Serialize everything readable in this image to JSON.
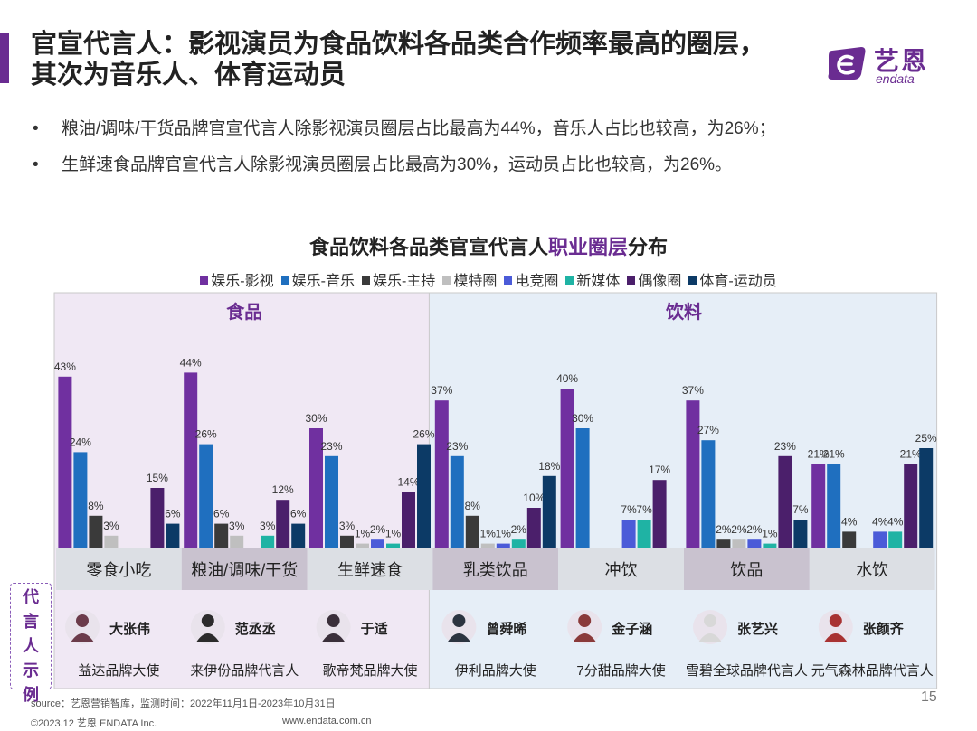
{
  "header": {
    "title_line1": "官宣代言人：影视演员为食品饮料各品类合作频率最高的圈层，",
    "title_line2": "其次为音乐人、体育运动员"
  },
  "logo": {
    "cn": "艺恩",
    "en": "endata"
  },
  "bullets": [
    "粮油/调味/干货品牌官宣代言人除影视演员圈层占比最高为44%，音乐人占比也较高，为26%；",
    "生鲜速食品牌官宣代言人除影视演员圈层占比最高为30%，运动员占比也较高，为26%。"
  ],
  "bullet_symbol": "•",
  "chart_data": {
    "type": "bar",
    "title_prefix": "食品饮料各品类官宣代言人",
    "title_highlight": "职业圈层",
    "title_suffix": "分布",
    "groups": [
      {
        "label": "食品",
        "categories": [
          "零食小吃",
          "粮油/调味/干货",
          "生鲜速食"
        ]
      },
      {
        "label": "饮料",
        "categories": [
          "乳类饮品",
          "冲饮",
          "饮品",
          "水饮"
        ]
      }
    ],
    "categories": [
      "零食小吃",
      "粮油/调味/干货",
      "生鲜速食",
      "乳类饮品",
      "冲饮",
      "饮品",
      "水饮"
    ],
    "series": [
      {
        "name": "娱乐-影视",
        "color": "#7030a0",
        "values": [
          43,
          44,
          30,
          37,
          40,
          37,
          21
        ]
      },
      {
        "name": "娱乐-音乐",
        "color": "#1f6fbf",
        "values": [
          24,
          26,
          23,
          23,
          30,
          27,
          21
        ]
      },
      {
        "name": "娱乐-主持",
        "color": "#3a3a3a",
        "values": [
          8,
          6,
          3,
          8,
          null,
          2,
          4
        ]
      },
      {
        "name": "模特圈",
        "color": "#bfbfbf",
        "values": [
          3,
          3,
          1,
          1,
          null,
          2,
          null
        ]
      },
      {
        "name": "电竞圈",
        "color": "#4b5bd8",
        "values": [
          null,
          null,
          2,
          1,
          7,
          2,
          4
        ]
      },
      {
        "name": "新媒体",
        "color": "#1fb3a4",
        "values": [
          null,
          3,
          1,
          2,
          7,
          1,
          4
        ]
      },
      {
        "name": "偶像圈",
        "color": "#4b1f6b",
        "values": [
          15,
          12,
          14,
          10,
          17,
          23,
          21
        ]
      },
      {
        "name": "体育-运动员",
        "color": "#0c3a66",
        "values": [
          6,
          6,
          26,
          18,
          null,
          7,
          25
        ]
      }
    ],
    "ylim": [
      0,
      50
    ],
    "value_suffix": "%"
  },
  "rep_label": [
    "代",
    "言",
    "人",
    "示",
    "例"
  ],
  "representatives": [
    {
      "name": "大张伟",
      "desc": "益达品牌大使"
    },
    {
      "name": "范丞丞",
      "desc": "来伊份品牌代言人"
    },
    {
      "name": "于适",
      "desc": "歌帝梵品牌大使"
    },
    {
      "name": "曾舜晞",
      "desc": "伊利品牌大使"
    },
    {
      "name": "金子涵",
      "desc": "7分甜品牌大使"
    },
    {
      "name": "张艺兴",
      "desc": "雪碧全球品牌代言人"
    },
    {
      "name": "张颜齐",
      "desc": "元气森林品牌代言人"
    }
  ],
  "footer": {
    "source": "source：艺恩营销智库，监测时间：2022年11月1日-2023年10月31日",
    "copyright": "©2023.12 艺恩 ENDATA Inc.",
    "website": "www.endata.com.cn",
    "page": "15"
  },
  "colors": {
    "accent": "#6a2c91",
    "food_panel": "#f0e8f4",
    "drink_panel": "#e6eef7",
    "cat_dark": "#c9c2cf",
    "cat_light": "#dcdfe4"
  }
}
